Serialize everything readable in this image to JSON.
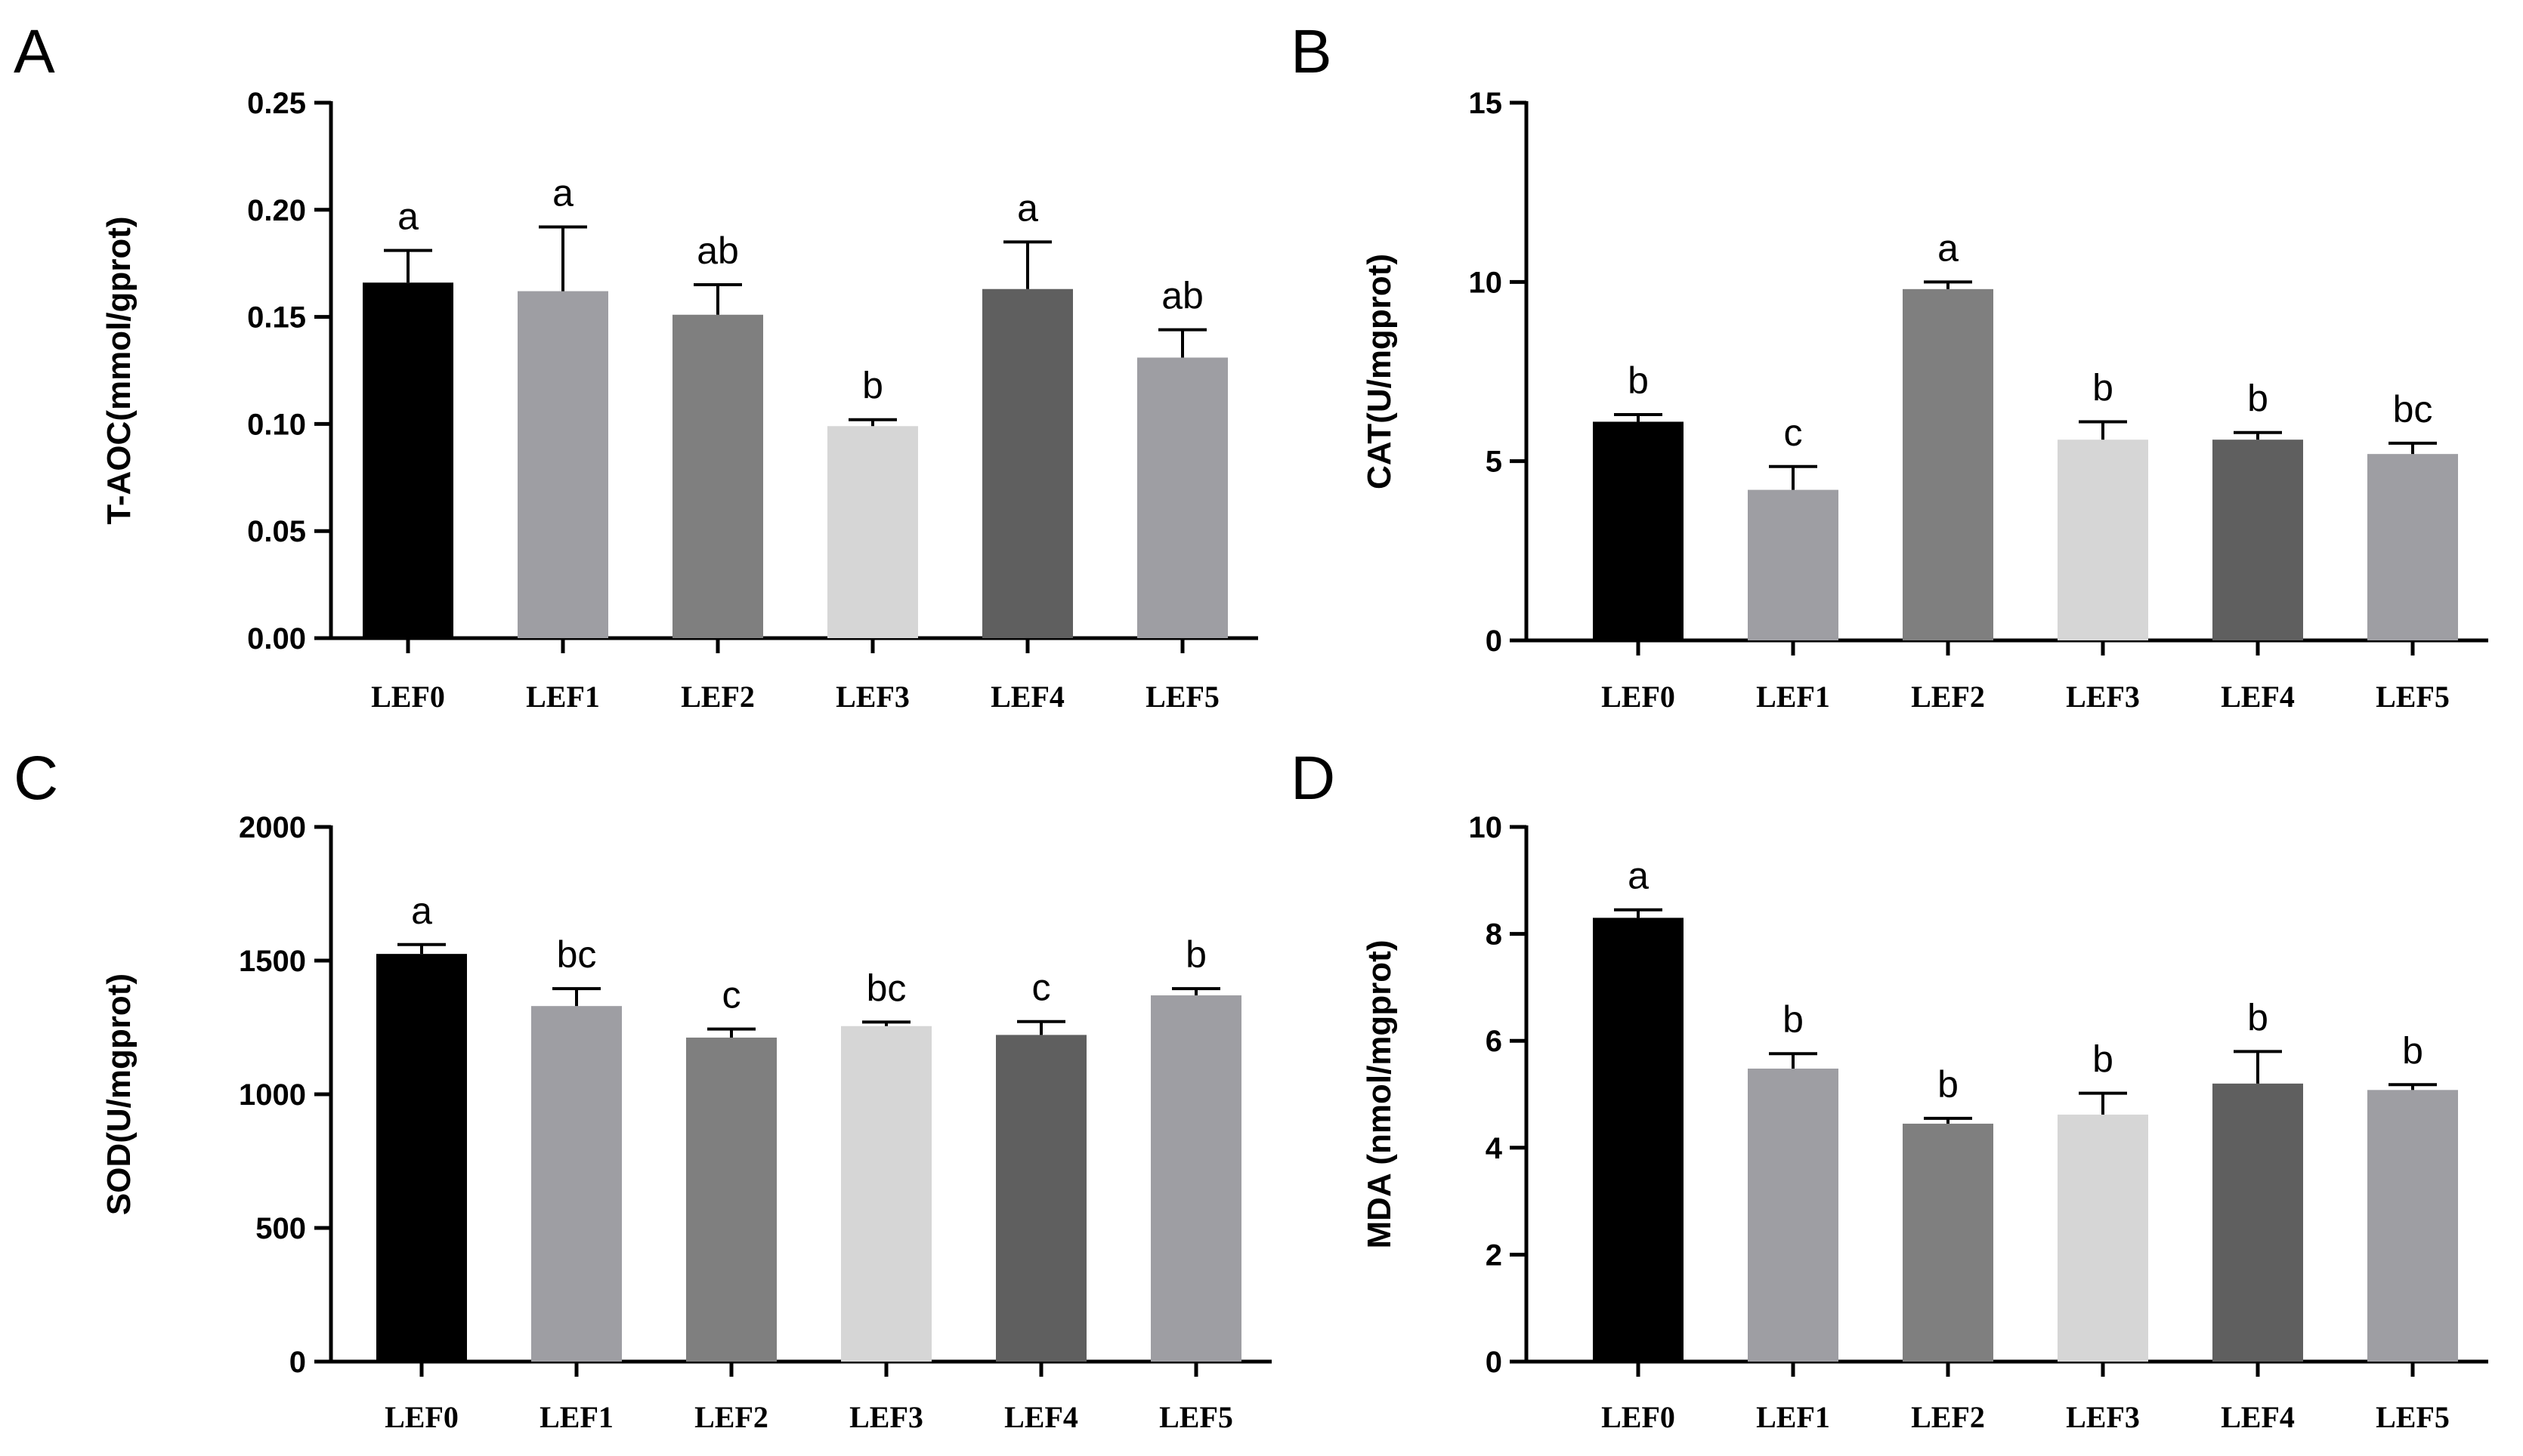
{
  "colors": [
    "#000000",
    "#9e9ea3",
    "#7f7f7f",
    "#d6d6d6",
    "#5f5f5f",
    "#9e9ea3"
  ],
  "chart_data": [
    {
      "panel": "A",
      "type": "bar",
      "categories": [
        "LEF0",
        "LEF1",
        "LEF2",
        "LEF3",
        "LEF4",
        "LEF5"
      ],
      "values": [
        0.166,
        0.162,
        0.151,
        0.099,
        0.163,
        0.131
      ],
      "errors": [
        0.015,
        0.03,
        0.014,
        0.003,
        0.022,
        0.013
      ],
      "significance": [
        "a",
        "a",
        "ab",
        "b",
        "a",
        "ab"
      ],
      "ylabel": "T-AOC(mmol/gprot)",
      "ylim": [
        0,
        0.25
      ],
      "yticks": [
        0,
        0.05,
        0.1,
        0.15,
        0.2,
        0.25
      ],
      "ytick_labels": [
        "0.00",
        "0.05",
        "0.10",
        "0.15",
        "0.20",
        "0.25"
      ]
    },
    {
      "panel": "B",
      "type": "bar",
      "categories": [
        "LEF0",
        "LEF1",
        "LEF2",
        "LEF3",
        "LEF4",
        "LEF5"
      ],
      "values": [
        6.1,
        4.2,
        9.8,
        5.6,
        5.6,
        5.2
      ],
      "errors": [
        0.2,
        0.65,
        0.2,
        0.5,
        0.2,
        0.3
      ],
      "significance": [
        "b",
        "c",
        "a",
        "b",
        "b",
        "bc"
      ],
      "ylabel": "CAT(U/mgprot)",
      "ylim": [
        0,
        15
      ],
      "yticks": [
        0,
        5,
        10,
        15
      ],
      "ytick_labels": [
        "0",
        "5",
        "10",
        "15"
      ]
    },
    {
      "panel": "C",
      "type": "bar",
      "categories": [
        "LEF0",
        "LEF1",
        "LEF2",
        "LEF3",
        "LEF4",
        "LEF5"
      ],
      "values": [
        1525,
        1330,
        1212,
        1255,
        1222,
        1370
      ],
      "errors": [
        35,
        65,
        32,
        15,
        50,
        25
      ],
      "significance": [
        "a",
        "bc",
        "c",
        "bc",
        "c",
        "b"
      ],
      "ylabel": "SOD(U/mgprot)",
      "ylim": [
        0,
        2000
      ],
      "yticks": [
        0,
        500,
        1000,
        1500,
        2000
      ],
      "ytick_labels": [
        "0",
        "500",
        "1000",
        "1500",
        "2000"
      ]
    },
    {
      "panel": "D",
      "type": "bar",
      "categories": [
        "LEF0",
        "LEF1",
        "LEF2",
        "LEF3",
        "LEF4",
        "LEF5"
      ],
      "values": [
        8.3,
        5.48,
        4.45,
        4.62,
        5.2,
        5.08
      ],
      "errors": [
        0.15,
        0.28,
        0.1,
        0.4,
        0.6,
        0.1
      ],
      "significance": [
        "a",
        "b",
        "b",
        "b",
        "b",
        "b"
      ],
      "ylabel": "MDA (nmol/mgprot)",
      "ylim": [
        0,
        10
      ],
      "yticks": [
        0,
        2,
        4,
        6,
        8,
        10
      ],
      "ytick_labels": [
        "0",
        "2",
        "4",
        "6",
        "8",
        "10"
      ]
    }
  ]
}
